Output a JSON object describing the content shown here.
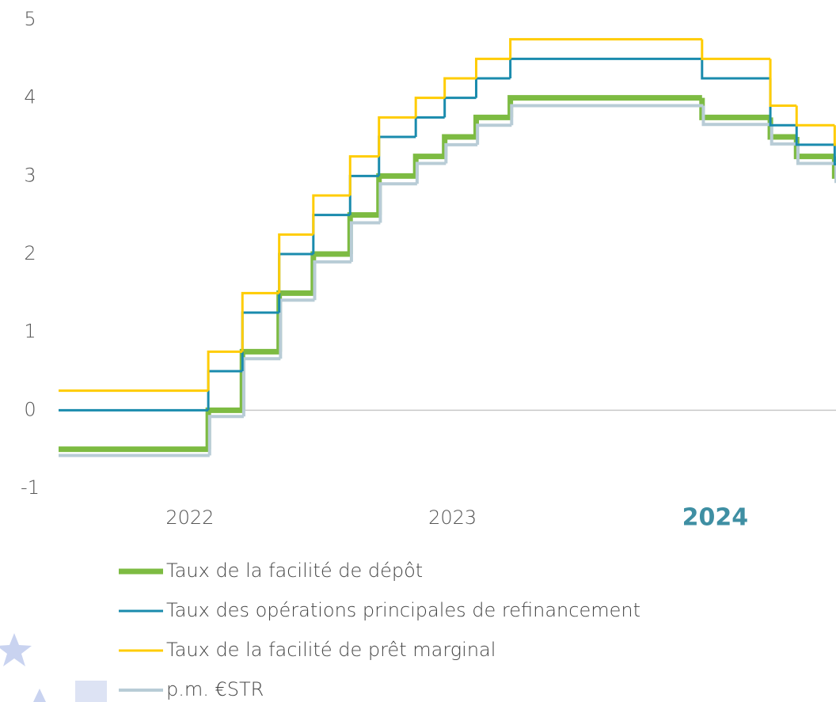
{
  "chart_data": {
    "type": "step",
    "xlim": [
      2022,
      2024.96
    ],
    "ylim": [
      -1,
      5
    ],
    "yticks": [
      -1,
      0,
      1,
      2,
      3,
      4,
      5
    ],
    "xticks": [
      {
        "value": 2022.5,
        "label": "2022"
      },
      {
        "value": 2023.5,
        "label": "2023"
      },
      {
        "value": 2024.5,
        "label": "2024"
      }
    ],
    "highlight_xtick": 2,
    "series": [
      {
        "name": "Taux de la facilité de dépôt",
        "color": "#7dbb42",
        "width": 7,
        "x": [
          2022,
          2022.57,
          2022.7,
          2022.84,
          2022.97,
          2023.11,
          2023.22,
          2023.36,
          2023.47,
          2023.59,
          2023.72,
          2024.45,
          2024.71,
          2024.81,
          2024.955
        ],
        "values": [
          -0.5,
          0,
          0.75,
          1.5,
          2,
          2.5,
          3,
          3.25,
          3.5,
          3.75,
          4,
          3.75,
          3.5,
          3.25,
          3
        ]
      },
      {
        "name": "Taux des opérations principales de refinancement",
        "color": "#1a8bad",
        "width": 3,
        "x": [
          2022,
          2022.57,
          2022.7,
          2022.84,
          2022.97,
          2023.11,
          2023.22,
          2023.36,
          2023.47,
          2023.59,
          2023.72,
          2024.45,
          2024.71,
          2024.81,
          2024.955
        ],
        "values": [
          0,
          0.5,
          1.25,
          2,
          2.5,
          3,
          3.5,
          3.75,
          4,
          4.25,
          4.5,
          4.25,
          3.65,
          3.4,
          3.15
        ]
      },
      {
        "name": "Taux de la facilité de prêt marginal",
        "color": "#ffcc00",
        "width": 3,
        "x": [
          2022,
          2022.57,
          2022.7,
          2022.84,
          2022.97,
          2023.11,
          2023.22,
          2023.36,
          2023.47,
          2023.59,
          2023.72,
          2024.45,
          2024.71,
          2024.81,
          2024.955
        ],
        "values": [
          0.25,
          0.75,
          1.5,
          2.25,
          2.75,
          3.25,
          3.75,
          4,
          4.25,
          4.5,
          4.75,
          4.5,
          3.9,
          3.65,
          3.4
        ]
      },
      {
        "name": "p.m. €STR",
        "color": "#b8ccd6",
        "width": 4,
        "x": [
          2022,
          2022.575,
          2022.705,
          2022.845,
          2022.975,
          2023.115,
          2023.225,
          2023.365,
          2023.475,
          2023.595,
          2023.725,
          2024.455,
          2024.715,
          2024.815,
          2024.96
        ],
        "values": [
          -0.58,
          -0.08,
          0.66,
          1.41,
          1.9,
          2.4,
          2.9,
          3.16,
          3.4,
          3.65,
          3.9,
          3.66,
          3.41,
          3.16,
          2.91
        ]
      }
    ]
  }
}
